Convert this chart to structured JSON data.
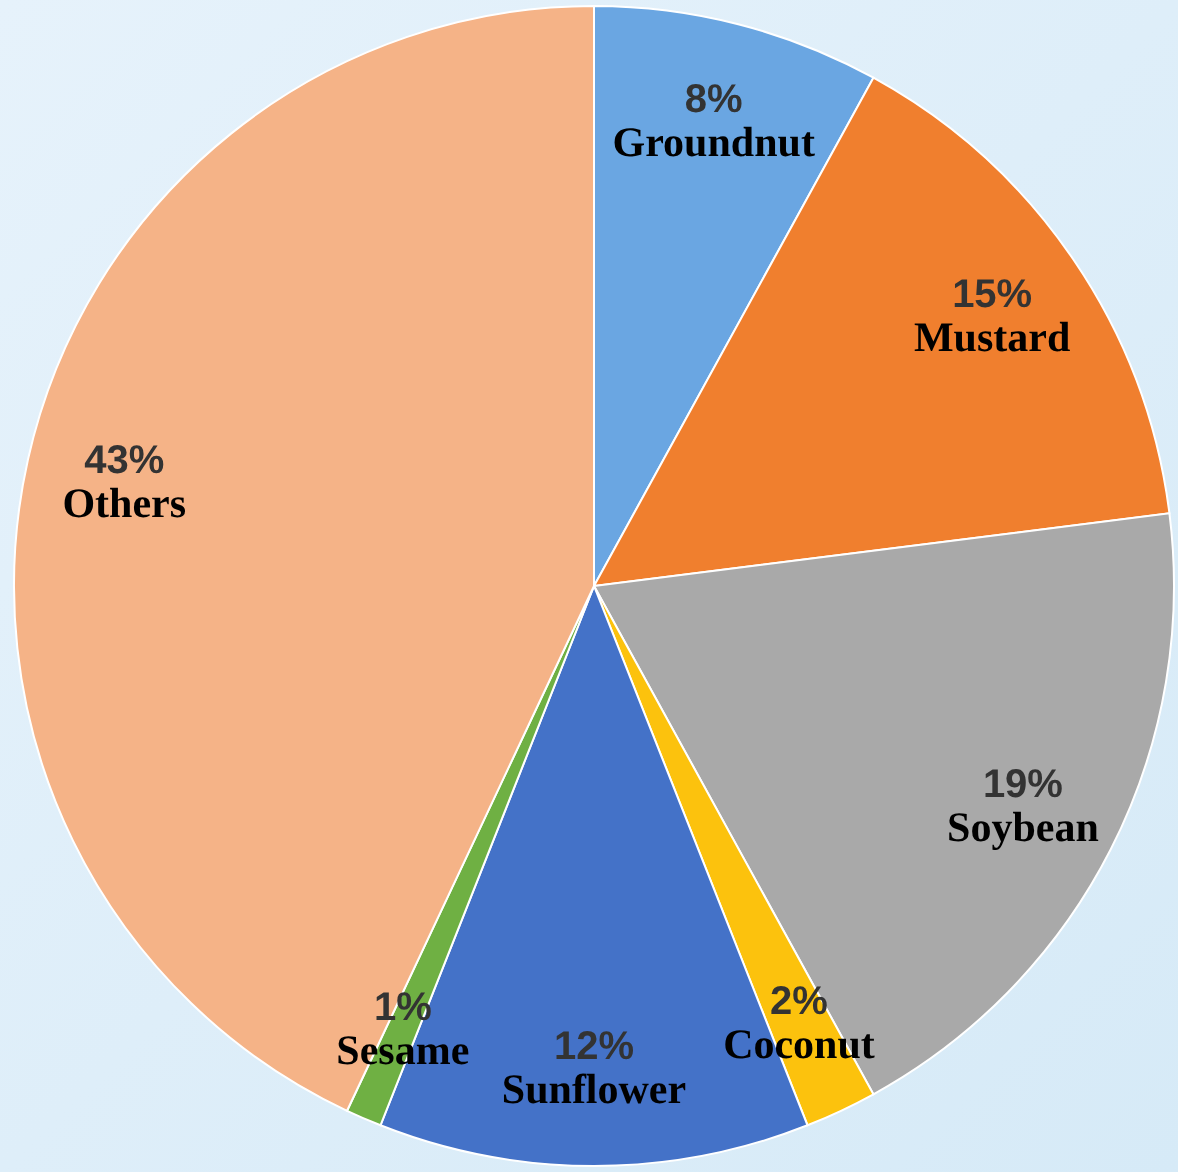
{
  "chart_data": {
    "type": "pie",
    "categories": [
      "Groundnut",
      "Mustard",
      "Soybean",
      "Coconut",
      "Sunflower",
      "Sesame",
      "Others"
    ],
    "values": [
      8,
      15,
      19,
      2,
      12,
      1,
      43
    ],
    "value_labels": [
      "8%",
      "15%",
      "19%",
      "2%",
      "12%",
      "1%",
      "43%"
    ],
    "colors": [
      "#6aa6e2",
      "#f07f2e",
      "#a9a9a9",
      "#fcc20d",
      "#4472c8",
      "#6fb043",
      "#f5b387"
    ]
  }
}
